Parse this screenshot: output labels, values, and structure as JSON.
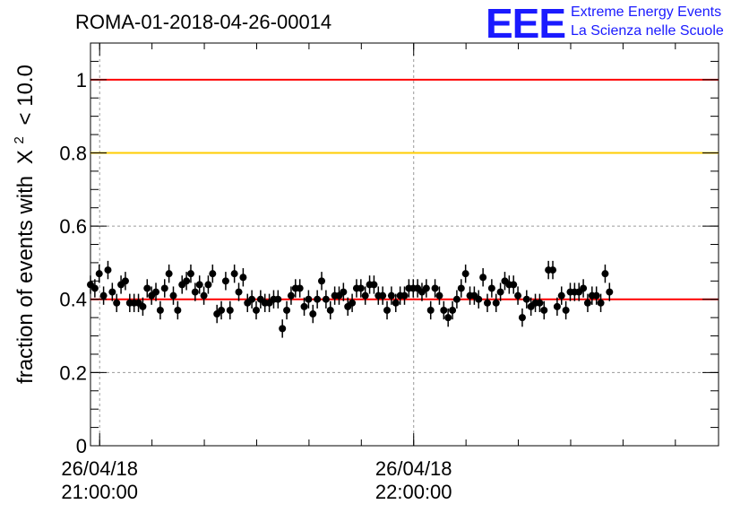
{
  "logo": {
    "mark": "EEE",
    "line1": "Extreme Energy Events",
    "line2": "La Scienza nelle Scuole"
  },
  "chart_data": {
    "type": "scatter",
    "title": "ROMA-01-2018-04-26-00014",
    "ylabel_prefix": "fraction of events with",
    "ylabel_symbol": "X",
    "ylabel_sup": "2",
    "ylabel_suffix": "< 10.0",
    "ylim": [
      0,
      1.1
    ],
    "y_ticks": [
      {
        "value": 0,
        "label": "0"
      },
      {
        "value": 0.2,
        "label": "0.2"
      },
      {
        "value": 0.4,
        "label": "0.4"
      },
      {
        "value": 0.6,
        "label": "0.6"
      },
      {
        "value": 0.8,
        "label": "0.8"
      },
      {
        "value": 1,
        "label": "1"
      }
    ],
    "xlim": [
      "2018-04-26T20:58:15",
      "2018-04-26T22:58:15"
    ],
    "x_ticks": [
      {
        "time": "2018-04-26T21:00:00",
        "date": "26/04/18",
        "clock": "21:00:00"
      },
      {
        "time": "2018-04-26T22:00:00",
        "date": "26/04/18",
        "clock": "22:00:00"
      }
    ],
    "grid": true,
    "reference_lines": [
      {
        "value": 1.0,
        "color": "#ff0000"
      },
      {
        "value": 0.8,
        "color": "#ffcc00"
      },
      {
        "value": 0.4,
        "color": "#ff0000"
      }
    ],
    "marker_color": "#000000",
    "error_bar": 0.025,
    "x_start": "2018-04-26T20:58:15",
    "x_step_seconds": 50,
    "y": [
      0.44,
      0.43,
      0.47,
      0.41,
      0.48,
      0.42,
      0.39,
      0.44,
      0.45,
      0.39,
      0.39,
      0.39,
      0.38,
      0.43,
      0.41,
      0.42,
      0.37,
      0.43,
      0.47,
      0.41,
      0.37,
      0.44,
      0.45,
      0.47,
      0.42,
      0.44,
      0.41,
      0.44,
      0.47,
      0.36,
      0.37,
      0.45,
      0.37,
      0.47,
      0.42,
      0.46,
      0.39,
      0.4,
      0.37,
      0.4,
      0.39,
      0.39,
      0.4,
      0.4,
      0.32,
      0.37,
      0.41,
      0.43,
      0.43,
      0.38,
      0.4,
      0.36,
      0.4,
      0.45,
      0.4,
      0.37,
      0.41,
      0.41,
      0.42,
      0.38,
      0.39,
      0.43,
      0.43,
      0.41,
      0.44,
      0.44,
      0.41,
      0.41,
      0.37,
      0.41,
      0.39,
      0.41,
      0.41,
      0.43,
      0.43,
      0.43,
      0.42,
      0.43,
      0.37,
      0.43,
      0.41,
      0.37,
      0.35,
      0.37,
      0.4,
      0.43,
      0.47,
      0.41,
      0.41,
      0.4,
      0.46,
      0.39,
      0.43,
      0.39,
      0.42,
      0.45,
      0.44,
      0.44,
      0.41,
      0.35,
      0.4,
      0.38,
      0.39,
      0.39,
      0.37,
      0.48,
      0.48,
      0.38,
      0.41,
      0.37,
      0.42,
      0.42,
      0.42,
      0.43,
      0.39,
      0.41,
      0.41,
      0.39,
      0.47,
      0.42
    ]
  }
}
